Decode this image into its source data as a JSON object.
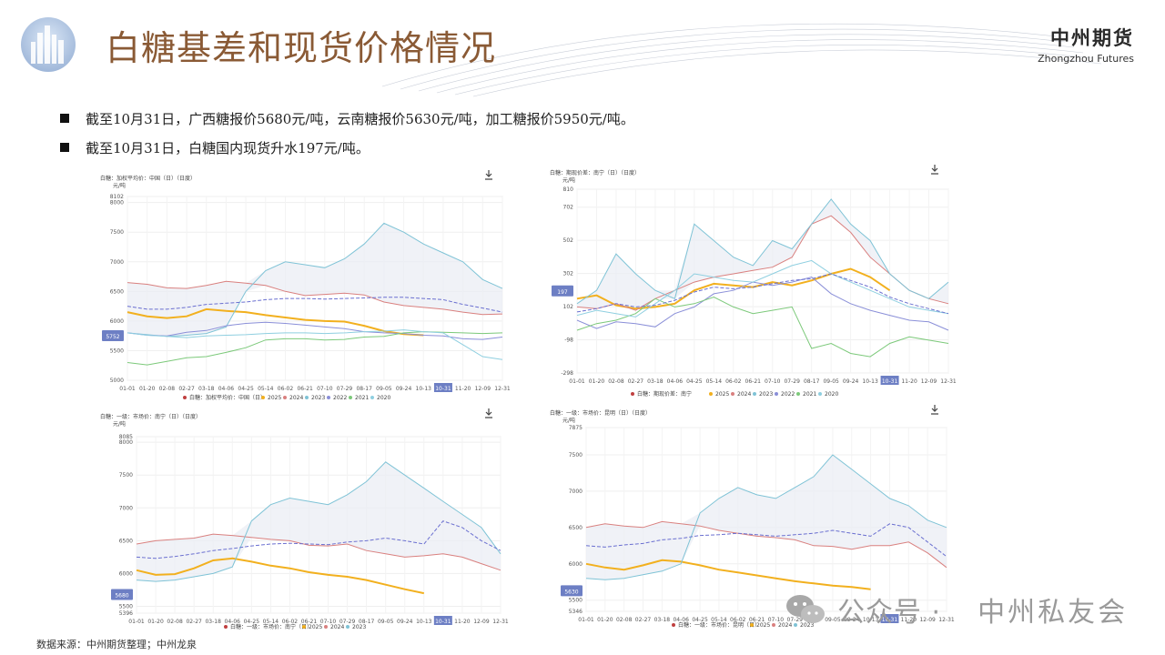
{
  "header": {
    "title": "白糖基差和现货价格情况",
    "brand_cn": "中州期货",
    "brand_en": "Zhongzhou Futures"
  },
  "bullets": [
    "截至10月31日，广西糖报价5680元/吨，云南糖报价5630元/吨，加工糖报价5950元/吨。",
    "截至10月31日，白糖国内现货升水197元/吨。"
  ],
  "source": "数据来源：中州期货整理；中州龙泉",
  "watermark": {
    "label": "公众号 ·",
    "name": "中州私友会"
  },
  "colors": {
    "title": "#8a5a35",
    "s2025": "#f2b01e",
    "s2024": "#d9807f",
    "s2023": "#7fc3d6",
    "s2022": "#8a8fd8",
    "s2021": "#7cc97a",
    "s2020": "#8fcfe0",
    "badge": "#6d7fc4"
  },
  "chart_data": [
    {
      "type": "line",
      "title": "白糖：加权平均价：中国（日）（日度）",
      "unit": "元/吨",
      "x_ticks": [
        "01-01",
        "01-20",
        "02-08",
        "02-27",
        "03-18",
        "04-06",
        "04-25",
        "05-14",
        "06-02",
        "06-21",
        "07-10",
        "07-29",
        "08-17",
        "09-05",
        "09-24",
        "10-13",
        "10-31",
        "11-20",
        "12-09",
        "12-31"
      ],
      "y_ticks": [
        "8102",
        "8000",
        "7500",
        "7000",
        "6500",
        "6000",
        "5752",
        "5500",
        "5000"
      ],
      "ylim": [
        5000,
        8102
      ],
      "current_label": "5752",
      "current_value": 5752,
      "highlight_x": "10-31",
      "legend": {
        "prefix": "白糖：加权平均价：中国（日）",
        "items": [
          "2025",
          "2024",
          "2023",
          "2022",
          "2021",
          "2020"
        ]
      },
      "series": [
        {
          "name": "2025",
          "color": "#f2b01e",
          "dash": false,
          "values": [
            6150,
            6080,
            6050,
            6080,
            6200,
            6170,
            6150,
            6100,
            6060,
            6020,
            6000,
            5990,
            5920,
            5830,
            5780,
            5760
          ]
        },
        {
          "name": "2024",
          "color": "#d9807f",
          "dash": false,
          "values": [
            6650,
            6620,
            6560,
            6550,
            6600,
            6670,
            6640,
            6600,
            6500,
            6430,
            6450,
            6470,
            6440,
            6320,
            6260,
            6230,
            6200,
            6150,
            6110,
            6120
          ]
        },
        {
          "name": "2023",
          "color": "#7fc3d6",
          "dash": false,
          "values": [
            5800,
            5770,
            5740,
            5760,
            5790,
            5900,
            6500,
            6850,
            7000,
            6950,
            6900,
            7050,
            7300,
            7650,
            7500,
            7300,
            7150,
            7000,
            6700,
            6550
          ]
        },
        {
          "name": "2022",
          "color": "#8a8fd8",
          "dash": false,
          "values": [
            5800,
            5760,
            5750,
            5810,
            5840,
            5920,
            5960,
            5980,
            5960,
            5930,
            5900,
            5870,
            5820,
            5800,
            5790,
            5760,
            5750,
            5700,
            5690,
            5730
          ]
        },
        {
          "name": "2021",
          "color": "#7cc97a",
          "dash": false,
          "values": [
            5300,
            5260,
            5320,
            5380,
            5400,
            5470,
            5550,
            5680,
            5700,
            5700,
            5680,
            5690,
            5730,
            5740,
            5800,
            5820,
            5810,
            5800,
            5790,
            5800
          ]
        },
        {
          "name": "2020",
          "color": "#8fcfe0",
          "dash": false,
          "values": [
            5800,
            5760,
            5740,
            5720,
            5750,
            5760,
            5770,
            5790,
            5800,
            5800,
            5790,
            5800,
            5820,
            5830,
            5850,
            5820,
            5800,
            5600,
            5400,
            5350
          ]
        },
        {
          "name": "均值",
          "color": "#6a6fd0",
          "dash": true,
          "values": [
            6250,
            6200,
            6200,
            6230,
            6280,
            6300,
            6320,
            6360,
            6380,
            6380,
            6370,
            6380,
            6390,
            6400,
            6400,
            6380,
            6360,
            6280,
            6220,
            6150
          ]
        }
      ]
    },
    {
      "type": "line",
      "title": "白糖：期现价差：南宁（日）（日度）",
      "unit": "元/吨",
      "x_ticks": [
        "01-01",
        "01-20",
        "02-08",
        "02-27",
        "03-18",
        "04-06",
        "04-25",
        "05-14",
        "06-02",
        "06-21",
        "07-10",
        "07-29",
        "08-17",
        "09-05",
        "09-24",
        "10-13",
        "10-31",
        "11-20",
        "12-09",
        "12-31"
      ],
      "y_ticks": [
        "810",
        "702",
        "502",
        "302",
        "197",
        "102",
        "-98",
        "-298"
      ],
      "ylim": [
        -298,
        810
      ],
      "current_label": "197",
      "current_value": 197,
      "highlight_x": "10-31",
      "legend": {
        "prefix": "白糖：期现价差：南宁",
        "items": [
          "2025",
          "2024",
          "2023",
          "2022",
          "2021",
          "2020"
        ]
      },
      "series": [
        {
          "name": "2025",
          "color": "#f2b01e",
          "dash": false,
          "values": [
            150,
            170,
            110,
            90,
            100,
            120,
            200,
            240,
            230,
            220,
            250,
            230,
            260,
            300,
            330,
            280,
            200
          ]
        },
        {
          "name": "2024",
          "color": "#d9807f",
          "dash": false,
          "values": [
            100,
            90,
            120,
            80,
            150,
            200,
            250,
            280,
            300,
            320,
            340,
            400,
            600,
            650,
            550,
            400,
            300,
            200,
            150,
            120
          ]
        },
        {
          "name": "2023",
          "color": "#7fc3d6",
          "dash": false,
          "values": [
            120,
            200,
            420,
            300,
            200,
            150,
            600,
            500,
            400,
            350,
            500,
            450,
            600,
            750,
            600,
            500,
            300,
            200,
            150,
            250
          ]
        },
        {
          "name": "2022",
          "color": "#8a8fd8",
          "dash": false,
          "values": [
            20,
            -30,
            10,
            0,
            -20,
            60,
            100,
            180,
            200,
            250,
            230,
            250,
            280,
            180,
            120,
            80,
            50,
            20,
            10,
            -40
          ]
        },
        {
          "name": "2021",
          "color": "#7cc97a",
          "dash": false,
          "values": [
            -40,
            0,
            20,
            60,
            150,
            100,
            120,
            160,
            100,
            60,
            80,
            100,
            -150,
            -120,
            -180,
            -200,
            -120,
            -80,
            -100,
            -120
          ]
        },
        {
          "name": "2020",
          "color": "#8fcfe0",
          "dash": false,
          "values": [
            50,
            80,
            60,
            40,
            120,
            200,
            300,
            280,
            260,
            250,
            300,
            350,
            380,
            300,
            250,
            200,
            150,
            100,
            80,
            60
          ]
        },
        {
          "name": "均值",
          "color": "#6a6fd0",
          "dash": true,
          "values": [
            70,
            90,
            120,
            100,
            110,
            140,
            190,
            220,
            210,
            220,
            240,
            260,
            270,
            300,
            260,
            220,
            160,
            120,
            90,
            60
          ]
        }
      ]
    },
    {
      "type": "line",
      "title": "白糖：一级：市场价：南宁（日）（日度）",
      "unit": "元/吨",
      "x_ticks": [
        "01-01",
        "01-20",
        "02-08",
        "02-27",
        "03-18",
        "04-06",
        "04-25",
        "05-14",
        "06-02",
        "06-21",
        "07-10",
        "07-29",
        "08-17",
        "09-05",
        "09-24",
        "10-13",
        "10-31",
        "11-20",
        "12-09",
        "12-31"
      ],
      "y_ticks": [
        "8085",
        "8000",
        "7500",
        "7000",
        "6500",
        "6000",
        "5680",
        "5500",
        "5396"
      ],
      "ylim": [
        5396,
        8085
      ],
      "current_label": "5680",
      "current_value": 5680,
      "highlight_x": "10-31",
      "legend": {
        "prefix": "白糖：一级：市场价：南宁（日）",
        "items": [
          "2025",
          "2024",
          "2023"
        ]
      },
      "series": [
        {
          "name": "2025",
          "color": "#f2b01e",
          "dash": false,
          "values": [
            6050,
            5980,
            5990,
            6080,
            6200,
            6230,
            6180,
            6120,
            6080,
            6020,
            5980,
            5950,
            5900,
            5830,
            5760,
            5700
          ]
        },
        {
          "name": "2024",
          "color": "#d9807f",
          "dash": false,
          "values": [
            6450,
            6500,
            6520,
            6540,
            6600,
            6580,
            6550,
            6520,
            6500,
            6430,
            6420,
            6450,
            6350,
            6300,
            6250,
            6270,
            6300,
            6250,
            6150,
            6050
          ]
        },
        {
          "name": "2023",
          "color": "#7fc3d6",
          "dash": false,
          "values": [
            5900,
            5880,
            5900,
            5950,
            6000,
            6100,
            6800,
            7050,
            7150,
            7100,
            7050,
            7200,
            7400,
            7700,
            7500,
            7300,
            7100,
            6900,
            6700,
            6300
          ]
        },
        {
          "name": "均值",
          "color": "#6a6fd0",
          "dash": true,
          "values": [
            6250,
            6230,
            6260,
            6300,
            6350,
            6380,
            6420,
            6450,
            6460,
            6450,
            6440,
            6480,
            6500,
            6540,
            6500,
            6450,
            6800,
            6700,
            6500,
            6350
          ]
        }
      ]
    },
    {
      "type": "line",
      "title": "白糖：一级：市场价：昆明（日）（日度）",
      "unit": "元/吨",
      "x_ticks": [
        "01-01",
        "01-20",
        "02-08",
        "02-27",
        "03-18",
        "04-06",
        "04-25",
        "05-14",
        "06-02",
        "06-21",
        "07-10",
        "07-29",
        "08-17",
        "09-05",
        "09-24",
        "10-13",
        "10-31",
        "11-20",
        "12-09",
        "12-31"
      ],
      "y_ticks": [
        "7875",
        "7500",
        "7000",
        "6500",
        "6000",
        "5630",
        "5500",
        "5346"
      ],
      "ylim": [
        5346,
        7875
      ],
      "current_label": "5630",
      "current_value": 5630,
      "highlight_x": "10-31",
      "legend": {
        "prefix": "白糖：一级：市场价：昆明（日）",
        "items": [
          "2025",
          "2024",
          "2023"
        ]
      },
      "series": [
        {
          "name": "2025",
          "color": "#f2b01e",
          "dash": false,
          "values": [
            6000,
            5950,
            5920,
            5980,
            6050,
            6030,
            5980,
            5920,
            5880,
            5840,
            5800,
            5760,
            5730,
            5700,
            5680,
            5650
          ]
        },
        {
          "name": "2024",
          "color": "#d9807f",
          "dash": false,
          "values": [
            6500,
            6550,
            6520,
            6500,
            6580,
            6550,
            6520,
            6460,
            6420,
            6380,
            6360,
            6330,
            6250,
            6240,
            6200,
            6250,
            6250,
            6300,
            6150,
            5950
          ]
        },
        {
          "name": "2023",
          "color": "#7fc3d6",
          "dash": false,
          "values": [
            5800,
            5780,
            5800,
            5850,
            5900,
            6000,
            6700,
            6900,
            7050,
            6950,
            6900,
            7050,
            7200,
            7500,
            7300,
            7100,
            6900,
            6800,
            6600,
            6500
          ]
        },
        {
          "name": "均值",
          "color": "#6a6fd0",
          "dash": true,
          "values": [
            6250,
            6230,
            6260,
            6280,
            6330,
            6350,
            6390,
            6400,
            6420,
            6400,
            6380,
            6400,
            6420,
            6460,
            6420,
            6380,
            6550,
            6500,
            6300,
            6100
          ]
        }
      ]
    }
  ]
}
